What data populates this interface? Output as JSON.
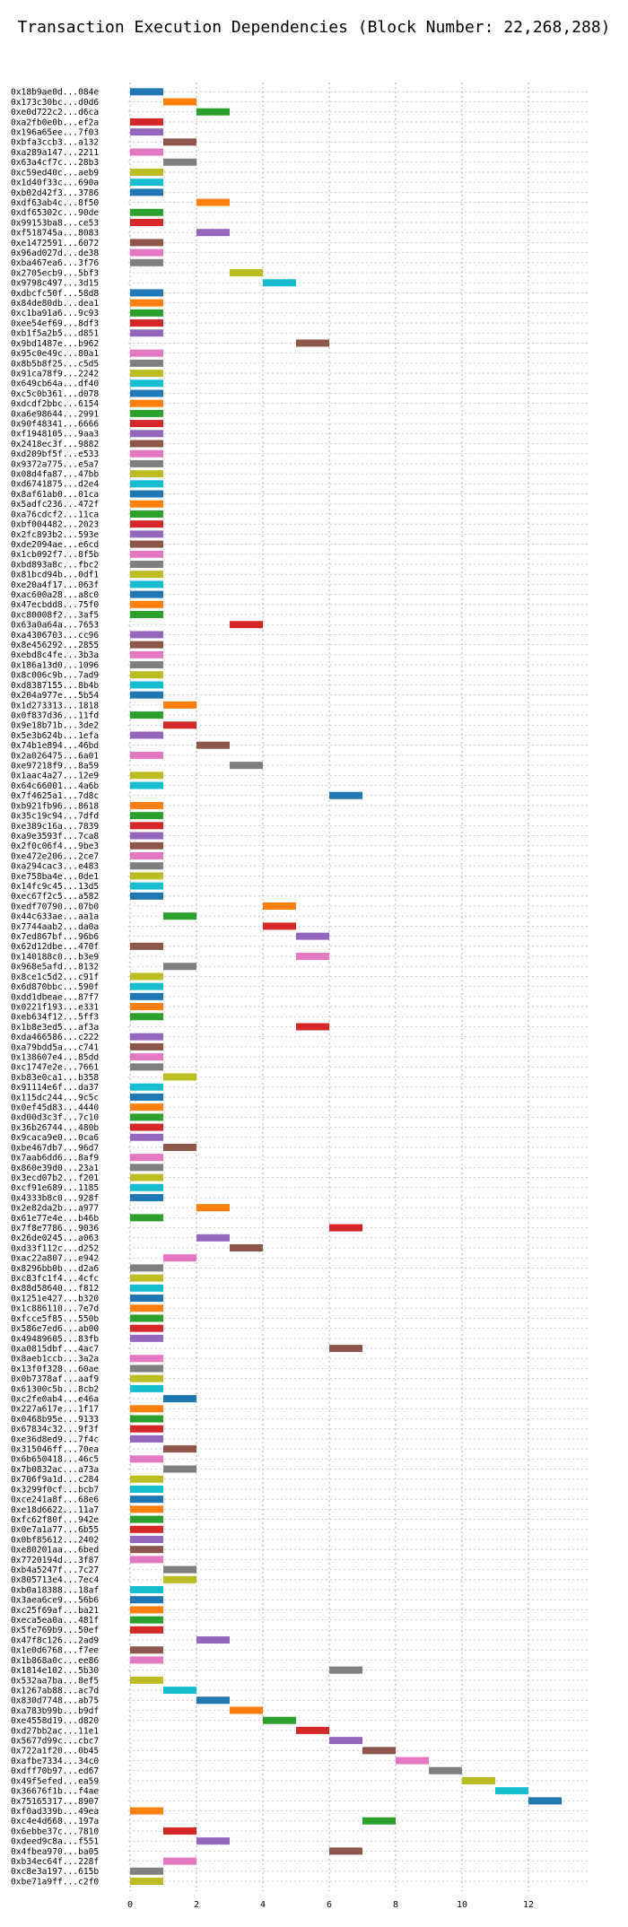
{
  "chart_data": {
    "type": "bar",
    "orientation": "horizontal-gantt",
    "title": "Transaction Execution Dependencies (Block Number: 22,268,288)",
    "xlabel": "",
    "ylabel": "",
    "xlim": [
      0,
      13.8
    ],
    "xticks": [
      0,
      2,
      4,
      6,
      8,
      10,
      12
    ],
    "grid": true,
    "grid_style": "dotted",
    "palette": [
      "#1f77b4",
      "#ff7f0e",
      "#2ca02c",
      "#d62728",
      "#9467bd",
      "#8c564b",
      "#e377c2",
      "#7f7f7f",
      "#bcbd22",
      "#17becf"
    ],
    "transactions": [
      {
        "label": "0x18b9ae0d...084e",
        "start": 0,
        "end": 1
      },
      {
        "label": "0x173c30bc...d0d6",
        "start": 1,
        "end": 2
      },
      {
        "label": "0xe0d722c2...d6ca",
        "start": 2,
        "end": 3
      },
      {
        "label": "0xa2fb0e0b...ef2a",
        "start": 0,
        "end": 1
      },
      {
        "label": "0x196a65ee...7f03",
        "start": 0,
        "end": 1
      },
      {
        "label": "0xbfa3ccb3...a132",
        "start": 1,
        "end": 2
      },
      {
        "label": "0xa289a147...2211",
        "start": 0,
        "end": 1
      },
      {
        "label": "0x63a4cf7c...28b3",
        "start": 1,
        "end": 2
      },
      {
        "label": "0xc59ed40c...aeb9",
        "start": 0,
        "end": 1
      },
      {
        "label": "0x1d40f33c...690a",
        "start": 0,
        "end": 1
      },
      {
        "label": "0xb02d42f3...3786",
        "start": 0,
        "end": 1
      },
      {
        "label": "0xdf63ab4c...8f50",
        "start": 2,
        "end": 3
      },
      {
        "label": "0xdf65302c...90de",
        "start": 0,
        "end": 1
      },
      {
        "label": "0x99153ba8...ce53",
        "start": 0,
        "end": 1
      },
      {
        "label": "0xf518745a...8083",
        "start": 2,
        "end": 3
      },
      {
        "label": "0xe1472591...6072",
        "start": 0,
        "end": 1
      },
      {
        "label": "0x96ad027d...de38",
        "start": 0,
        "end": 1
      },
      {
        "label": "0xba467ea6...3f76",
        "start": 0,
        "end": 1
      },
      {
        "label": "0x2705ecb9...5bf3",
        "start": 3,
        "end": 4
      },
      {
        "label": "0x9798c497...3d15",
        "start": 4,
        "end": 5
      },
      {
        "label": "0xdbcfc50f...58d8",
        "start": 0,
        "end": 1
      },
      {
        "label": "0x84de80db...dea1",
        "start": 0,
        "end": 1
      },
      {
        "label": "0xc1ba91a6...9c93",
        "start": 0,
        "end": 1
      },
      {
        "label": "0xee54ef69...8df3",
        "start": 0,
        "end": 1
      },
      {
        "label": "0xb1f5a2b5...d851",
        "start": 0,
        "end": 1
      },
      {
        "label": "0x9bd1487e...b962",
        "start": 5,
        "end": 6
      },
      {
        "label": "0x95c0e49c...80a1",
        "start": 0,
        "end": 1
      },
      {
        "label": "0x8b5b8f25...c5d5",
        "start": 0,
        "end": 1
      },
      {
        "label": "0x91ca78f9...2242",
        "start": 0,
        "end": 1
      },
      {
        "label": "0x649cb64a...df40",
        "start": 0,
        "end": 1
      },
      {
        "label": "0xc5c0b361...d078",
        "start": 0,
        "end": 1
      },
      {
        "label": "0xdcdf2bbc...6154",
        "start": 0,
        "end": 1
      },
      {
        "label": "0xa6e98644...2991",
        "start": 0,
        "end": 1
      },
      {
        "label": "0x90f48341...6666",
        "start": 0,
        "end": 1
      },
      {
        "label": "0xf1948105...9aa3",
        "start": 0,
        "end": 1
      },
      {
        "label": "0x2418ec3f...9882",
        "start": 0,
        "end": 1
      },
      {
        "label": "0xd209bf5f...e533",
        "start": 0,
        "end": 1
      },
      {
        "label": "0x9372a775...e5a7",
        "start": 0,
        "end": 1
      },
      {
        "label": "0x08d4fa87...47bb",
        "start": 0,
        "end": 1
      },
      {
        "label": "0xd6741875...d2e4",
        "start": 0,
        "end": 1
      },
      {
        "label": "0x8af61ab0...01ca",
        "start": 0,
        "end": 1
      },
      {
        "label": "0x5adfc236...472f",
        "start": 0,
        "end": 1
      },
      {
        "label": "0xa76cdcf2...11ca",
        "start": 0,
        "end": 1
      },
      {
        "label": "0xbf004482...2023",
        "start": 0,
        "end": 1
      },
      {
        "label": "0x2fc893b2...593e",
        "start": 0,
        "end": 1
      },
      {
        "label": "0xde2094ae...e6cd",
        "start": 0,
        "end": 1
      },
      {
        "label": "0x1cb092f7...8f5b",
        "start": 0,
        "end": 1
      },
      {
        "label": "0xbd893a8c...fbc2",
        "start": 0,
        "end": 1
      },
      {
        "label": "0x81bcd94b...0df1",
        "start": 0,
        "end": 1
      },
      {
        "label": "0xe20a4f17...063f",
        "start": 0,
        "end": 1
      },
      {
        "label": "0xac600a28...a8c0",
        "start": 0,
        "end": 1
      },
      {
        "label": "0x47ecbdd8...75f0",
        "start": 0,
        "end": 1
      },
      {
        "label": "0xc80008f2...3af5",
        "start": 0,
        "end": 1
      },
      {
        "label": "0x63a0a64a...7653",
        "start": 3,
        "end": 4
      },
      {
        "label": "0xa4306703...cc96",
        "start": 0,
        "end": 1
      },
      {
        "label": "0x8e456292...2855",
        "start": 0,
        "end": 1
      },
      {
        "label": "0xebd8c4fe...3b3a",
        "start": 0,
        "end": 1
      },
      {
        "label": "0x186a13d0...1096",
        "start": 0,
        "end": 1
      },
      {
        "label": "0x8c006c9b...7ad9",
        "start": 0,
        "end": 1
      },
      {
        "label": "0xd8387155...8b4b",
        "start": 0,
        "end": 1
      },
      {
        "label": "0x204a977e...5b54",
        "start": 0,
        "end": 1
      },
      {
        "label": "0x1d273313...1818",
        "start": 1,
        "end": 2
      },
      {
        "label": "0x0f837d36...11fd",
        "start": 0,
        "end": 1
      },
      {
        "label": "0x9e18b71b...3de2",
        "start": 1,
        "end": 2
      },
      {
        "label": "0x5e3b624b...1efa",
        "start": 0,
        "end": 1
      },
      {
        "label": "0x74b1e894...46bd",
        "start": 2,
        "end": 3
      },
      {
        "label": "0x2a026475...6a01",
        "start": 0,
        "end": 1
      },
      {
        "label": "0xe97218f9...8a59",
        "start": 3,
        "end": 4
      },
      {
        "label": "0x1aac4a27...12e9",
        "start": 0,
        "end": 1
      },
      {
        "label": "0x64c66001...4a6b",
        "start": 0,
        "end": 1
      },
      {
        "label": "0x7f4625a1...7d8c",
        "start": 6,
        "end": 7
      },
      {
        "label": "0xb921fb96...8618",
        "start": 0,
        "end": 1
      },
      {
        "label": "0x35c19c94...7dfd",
        "start": 0,
        "end": 1
      },
      {
        "label": "0xe389c16a...7839",
        "start": 0,
        "end": 1
      },
      {
        "label": "0xa9e3593f...7ca8",
        "start": 0,
        "end": 1
      },
      {
        "label": "0x2f0c06f4...9be3",
        "start": 0,
        "end": 1
      },
      {
        "label": "0xe472e206...2ce7",
        "start": 0,
        "end": 1
      },
      {
        "label": "0xa294cac3...e483",
        "start": 0,
        "end": 1
      },
      {
        "label": "0xe758ba4e...0de1",
        "start": 0,
        "end": 1
      },
      {
        "label": "0x14fc9c45...13d5",
        "start": 0,
        "end": 1
      },
      {
        "label": "0xec67f2c5...a582",
        "start": 0,
        "end": 1
      },
      {
        "label": "0xedf70790...07b0",
        "start": 4,
        "end": 5
      },
      {
        "label": "0x44c633ae...aa1a",
        "start": 1,
        "end": 2
      },
      {
        "label": "0x7744aab2...da0a",
        "start": 4,
        "end": 5
      },
      {
        "label": "0x7ed867bf...96b6",
        "start": 5,
        "end": 6
      },
      {
        "label": "0x62d12dbe...470f",
        "start": 0,
        "end": 1
      },
      {
        "label": "0x140188c0...b3e9",
        "start": 5,
        "end": 6
      },
      {
        "label": "0x968e5afd...8132",
        "start": 1,
        "end": 2
      },
      {
        "label": "0x8ce1c5d2...c91f",
        "start": 0,
        "end": 1
      },
      {
        "label": "0x6d870bbc...590f",
        "start": 0,
        "end": 1
      },
      {
        "label": "0xdd1dbeae...87f7",
        "start": 0,
        "end": 1
      },
      {
        "label": "0x0221f193...e331",
        "start": 0,
        "end": 1
      },
      {
        "label": "0xeb634f12...5ff3",
        "start": 0,
        "end": 1
      },
      {
        "label": "0x1b8e3ed5...af3a",
        "start": 5,
        "end": 6
      },
      {
        "label": "0xda466586...c222",
        "start": 0,
        "end": 1
      },
      {
        "label": "0xa79bdd5a...c741",
        "start": 0,
        "end": 1
      },
      {
        "label": "0x138607e4...85dd",
        "start": 0,
        "end": 1
      },
      {
        "label": "0xc1747e2e...7661",
        "start": 0,
        "end": 1
      },
      {
        "label": "0xb83e0ca1...b358",
        "start": 1,
        "end": 2
      },
      {
        "label": "0x91114e6f...da37",
        "start": 0,
        "end": 1
      },
      {
        "label": "0x115dc244...9c5c",
        "start": 0,
        "end": 1
      },
      {
        "label": "0x0ef45d83...4440",
        "start": 0,
        "end": 1
      },
      {
        "label": "0xd00d3c3f...7c10",
        "start": 0,
        "end": 1
      },
      {
        "label": "0x36b26744...480b",
        "start": 0,
        "end": 1
      },
      {
        "label": "0x9caca9e0...0ca6",
        "start": 0,
        "end": 1
      },
      {
        "label": "0xbe467db7...96d7",
        "start": 1,
        "end": 2
      },
      {
        "label": "0x7aab6dd6...8af9",
        "start": 0,
        "end": 1
      },
      {
        "label": "0x860e39d0...23a1",
        "start": 0,
        "end": 1
      },
      {
        "label": "0x3ecd07b2...f201",
        "start": 0,
        "end": 1
      },
      {
        "label": "0xcf91e689...1185",
        "start": 0,
        "end": 1
      },
      {
        "label": "0x4333b8c0...928f",
        "start": 0,
        "end": 1
      },
      {
        "label": "0x2e82da2b...a977",
        "start": 2,
        "end": 3
      },
      {
        "label": "0x61e77e4e...b46b",
        "start": 0,
        "end": 1
      },
      {
        "label": "0x7f8e7786...9036",
        "start": 6,
        "end": 7
      },
      {
        "label": "0x26de0245...a063",
        "start": 2,
        "end": 3
      },
      {
        "label": "0xd33f112c...d252",
        "start": 3,
        "end": 4
      },
      {
        "label": "0xac22a807...e942",
        "start": 1,
        "end": 2
      },
      {
        "label": "0x8296bb0b...d2a6",
        "start": 0,
        "end": 1
      },
      {
        "label": "0xc83fc1f4...4cfc",
        "start": 0,
        "end": 1
      },
      {
        "label": "0x88d58640...f812",
        "start": 0,
        "end": 1
      },
      {
        "label": "0x1251e427...b320",
        "start": 0,
        "end": 1
      },
      {
        "label": "0x1c886110...7e7d",
        "start": 0,
        "end": 1
      },
      {
        "label": "0xfcce5f85...550b",
        "start": 0,
        "end": 1
      },
      {
        "label": "0x586e7ed6...ab00",
        "start": 0,
        "end": 1
      },
      {
        "label": "0x49489605...83fb",
        "start": 0,
        "end": 1
      },
      {
        "label": "0xa0815dbf...4ac7",
        "start": 6,
        "end": 7
      },
      {
        "label": "0x8aeb1ccb...3a2a",
        "start": 0,
        "end": 1
      },
      {
        "label": "0x13f0f328...60ae",
        "start": 0,
        "end": 1
      },
      {
        "label": "0x0b7378af...aaf9",
        "start": 0,
        "end": 1
      },
      {
        "label": "0x61300c5b...8cb2",
        "start": 0,
        "end": 1
      },
      {
        "label": "0xc2fe0ab4...e46a",
        "start": 1,
        "end": 2
      },
      {
        "label": "0x227a617e...1f17",
        "start": 0,
        "end": 1
      },
      {
        "label": "0x0468b95e...9133",
        "start": 0,
        "end": 1
      },
      {
        "label": "0x67834c32...9f3f",
        "start": 0,
        "end": 1
      },
      {
        "label": "0xe36d8ed9...7f4c",
        "start": 0,
        "end": 1
      },
      {
        "label": "0x315046ff...70ea",
        "start": 1,
        "end": 2
      },
      {
        "label": "0x6b650418...46c5",
        "start": 0,
        "end": 1
      },
      {
        "label": "0x7b0832ac...a73a",
        "start": 1,
        "end": 2
      },
      {
        "label": "0x706f9a1d...c284",
        "start": 0,
        "end": 1
      },
      {
        "label": "0x3299f0cf...bcb7",
        "start": 0,
        "end": 1
      },
      {
        "label": "0xce241a8f...68e6",
        "start": 0,
        "end": 1
      },
      {
        "label": "0xe18d6622...11a7",
        "start": 0,
        "end": 1
      },
      {
        "label": "0xfc62f80f...942e",
        "start": 0,
        "end": 1
      },
      {
        "label": "0x0e7a1a77...6b55",
        "start": 0,
        "end": 1
      },
      {
        "label": "0x0bf85612...2402",
        "start": 0,
        "end": 1
      },
      {
        "label": "0xe80201aa...6bed",
        "start": 0,
        "end": 1
      },
      {
        "label": "0x7720194d...3f87",
        "start": 0,
        "end": 1
      },
      {
        "label": "0xb4a5247f...7c27",
        "start": 1,
        "end": 2
      },
      {
        "label": "0x805713e4...7ec4",
        "start": 1,
        "end": 2
      },
      {
        "label": "0xb0a18388...18af",
        "start": 0,
        "end": 1
      },
      {
        "label": "0x3aea6ce9...56b6",
        "start": 0,
        "end": 1
      },
      {
        "label": "0xc25f69af...ba21",
        "start": 0,
        "end": 1
      },
      {
        "label": "0xeca5ea0a...481f",
        "start": 0,
        "end": 1
      },
      {
        "label": "0x5fe769b9...50ef",
        "start": 0,
        "end": 1
      },
      {
        "label": "0x47f8c126...2ad9",
        "start": 2,
        "end": 3
      },
      {
        "label": "0x1e0d6768...f7ee",
        "start": 0,
        "end": 1
      },
      {
        "label": "0x1b868a0c...ee86",
        "start": 0,
        "end": 1
      },
      {
        "label": "0x1814e102...5b30",
        "start": 6,
        "end": 7
      },
      {
        "label": "0x532aa7ba...8ef5",
        "start": 0,
        "end": 1
      },
      {
        "label": "0x1267ab88...ac7d",
        "start": 1,
        "end": 2
      },
      {
        "label": "0x830d7748...ab75",
        "start": 2,
        "end": 3
      },
      {
        "label": "0xa783b99b...b9df",
        "start": 3,
        "end": 4
      },
      {
        "label": "0xe4558d19...d820",
        "start": 4,
        "end": 5
      },
      {
        "label": "0xd27bb2ac...11e1",
        "start": 5,
        "end": 6
      },
      {
        "label": "0x5677d99c...cbc7",
        "start": 6,
        "end": 7
      },
      {
        "label": "0x722a1f20...0b45",
        "start": 7,
        "end": 8
      },
      {
        "label": "0xafbe7334...34c0",
        "start": 8,
        "end": 9
      },
      {
        "label": "0xdff70b97...ed67",
        "start": 9,
        "end": 10
      },
      {
        "label": "0x49f5efed...ea59",
        "start": 10,
        "end": 11
      },
      {
        "label": "0x36676f1b...f4ae",
        "start": 11,
        "end": 12
      },
      {
        "label": "0x75165317...8907",
        "start": 12,
        "end": 13
      },
      {
        "label": "0xf0ad339b...49ea",
        "start": 0,
        "end": 1
      },
      {
        "label": "0xc4e4d668...197a",
        "start": 7,
        "end": 8
      },
      {
        "label": "0x6ebbe37c...7810",
        "start": 1,
        "end": 2
      },
      {
        "label": "0xdeed9c8a...f551",
        "start": 2,
        "end": 3
      },
      {
        "label": "0x4fbea970...ba05",
        "start": 6,
        "end": 7
      },
      {
        "label": "0xb34ec64f...228f",
        "start": 1,
        "end": 2
      },
      {
        "label": "0xc8e3a197...615b",
        "start": 0,
        "end": 1
      },
      {
        "label": "0xbe71a9ff...c2f0",
        "start": 0,
        "end": 1
      }
    ]
  }
}
